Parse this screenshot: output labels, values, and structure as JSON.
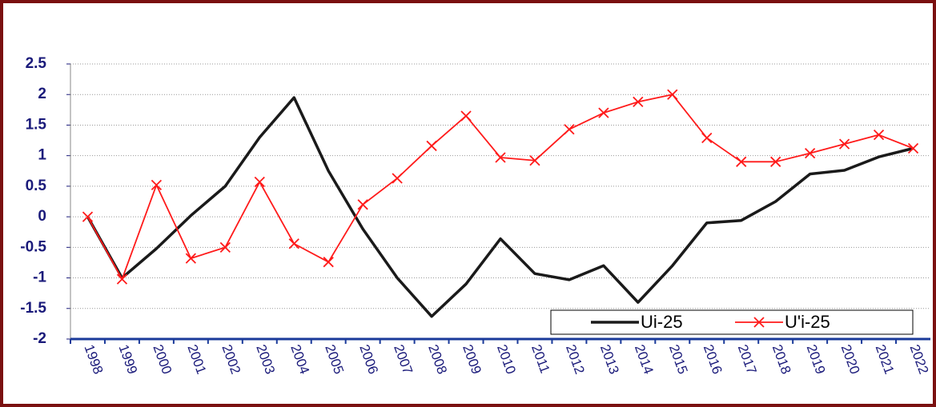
{
  "chart_data": {
    "type": "line",
    "categories": [
      "1998",
      "1999",
      "2000",
      "2001",
      "2002",
      "2003",
      "2004",
      "2005",
      "2006",
      "2007",
      "2008",
      "2009",
      "2010",
      "2011",
      "2012",
      "2013",
      "2014",
      "2015",
      "2016",
      "2017",
      "2018",
      "2019",
      "2020",
      "2021",
      "2022"
    ],
    "series": [
      {
        "name": "Ui-25",
        "color": "#1a1a1a",
        "values": [
          0,
          -1,
          -0.52,
          0.02,
          0.5,
          1.3,
          1.95,
          0.75,
          -0.2,
          -1,
          -1.63,
          -1.1,
          -0.36,
          -0.93,
          -1.03,
          -0.8,
          -1.4,
          -0.8,
          -0.1,
          -0.06,
          0.25,
          0.7,
          0.76,
          0.98,
          1.12
        ]
      },
      {
        "name": "U'i-25",
        "color": "#ff1a1a",
        "values": [
          0,
          -1.02,
          0.52,
          -0.68,
          -0.5,
          0.57,
          -0.44,
          -0.74,
          0.2,
          0.63,
          1.16,
          1.65,
          0.97,
          0.92,
          1.43,
          1.7,
          1.88,
          2.0,
          1.29,
          0.9,
          0.9,
          1.04,
          1.19,
          1.34,
          1.12
        ]
      }
    ],
    "ylim": [
      -2,
      2.5
    ],
    "yticks": [
      -2,
      -1.5,
      -1,
      -0.5,
      0,
      0.5,
      1,
      1.5,
      2,
      2.5
    ],
    "grid": true,
    "legend": "bottom-right"
  }
}
